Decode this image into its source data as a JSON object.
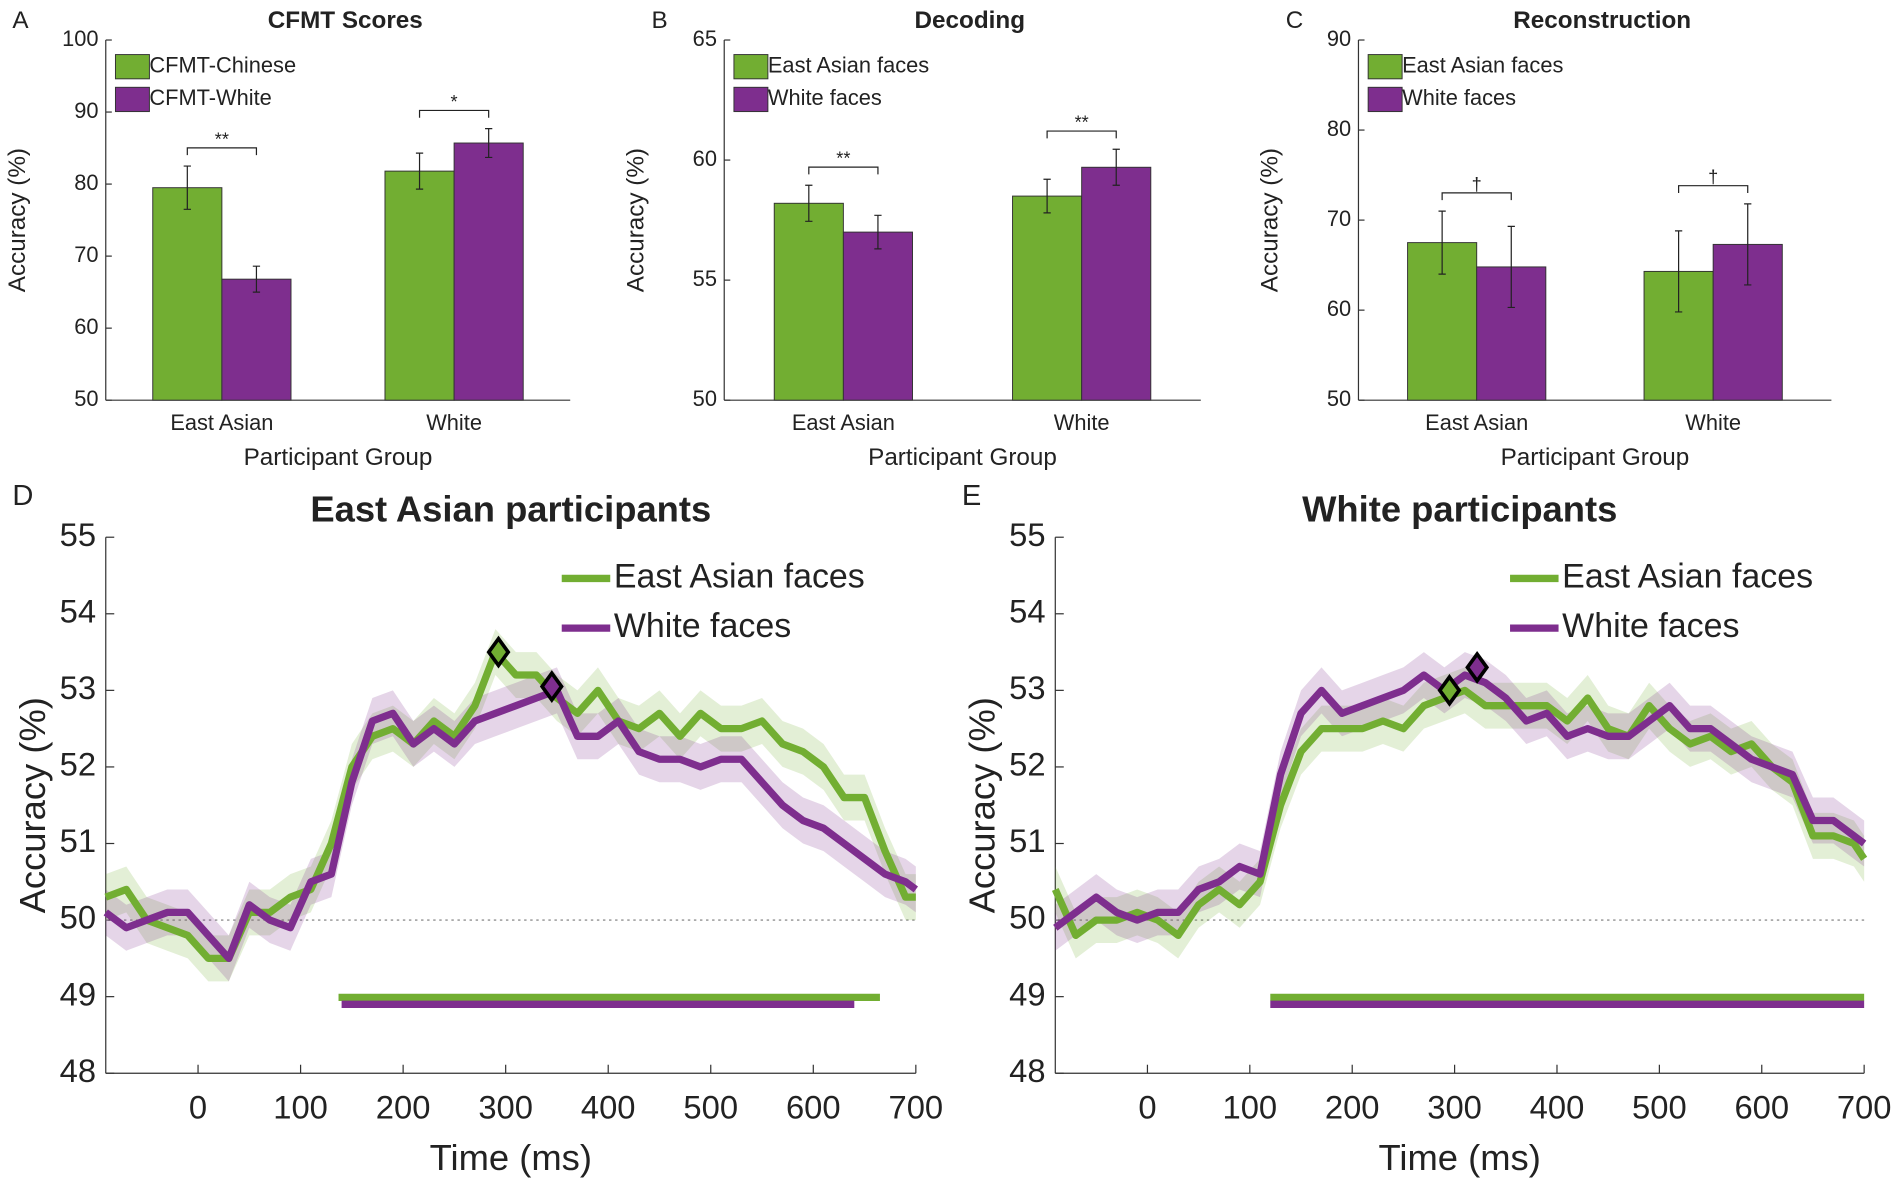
{
  "chart_data": [
    {
      "type": "bar",
      "label": "A",
      "title": "CFMT Scores",
      "xlabel": "Participant Group",
      "ylabel": "Accuracy (%)",
      "categories": [
        "East Asian",
        "White"
      ],
      "series": [
        {
          "name": "CFMT-Chinese",
          "color": "#72ae32",
          "values": [
            79.5,
            81.8
          ],
          "errors": [
            3.0,
            2.5
          ]
        },
        {
          "name": "CFMT-White",
          "color": "#7e2e8e",
          "values": [
            66.8,
            85.7
          ],
          "errors": [
            1.8,
            2.0
          ]
        }
      ],
      "annotations": [
        "**",
        "*"
      ],
      "ylim": [
        50,
        100
      ],
      "yticks": [
        50,
        60,
        70,
        80,
        90,
        100
      ]
    },
    {
      "type": "bar",
      "label": "B",
      "title": "Decoding",
      "xlabel": "Participant Group",
      "ylabel": "Accuracy (%)",
      "categories": [
        "East Asian",
        "White"
      ],
      "series": [
        {
          "name": "East Asian faces",
          "color": "#72ae32",
          "values": [
            58.2,
            58.5
          ],
          "errors": [
            0.75,
            0.7
          ]
        },
        {
          "name": "White faces",
          "color": "#7e2e8e",
          "values": [
            57.0,
            59.7
          ],
          "errors": [
            0.7,
            0.75
          ]
        }
      ],
      "annotations": [
        "**",
        "**"
      ],
      "ylim": [
        50,
        65
      ],
      "yticks": [
        50,
        55,
        60,
        65
      ]
    },
    {
      "type": "bar",
      "label": "C",
      "title": "Reconstruction",
      "xlabel": "Participant Group",
      "ylabel": "Accuracy (%)",
      "categories": [
        "East Asian",
        "White"
      ],
      "series": [
        {
          "name": "East Asian faces",
          "color": "#72ae32",
          "values": [
            67.5,
            64.3
          ],
          "errors": [
            3.5,
            4.5
          ]
        },
        {
          "name": "White faces",
          "color": "#7e2e8e",
          "values": [
            64.8,
            67.3
          ],
          "errors": [
            4.5,
            4.5
          ]
        }
      ],
      "annotations": [
        "†",
        "†"
      ],
      "ylim": [
        50,
        90
      ],
      "yticks": [
        50,
        60,
        70,
        80,
        90
      ]
    },
    {
      "type": "line",
      "label": "D",
      "title": "East Asian participants",
      "xlabel": "Time (ms)",
      "ylabel": "Accuracy (%)",
      "x": [
        -90,
        -70,
        -50,
        -30,
        -10,
        10,
        30,
        50,
        70,
        90,
        110,
        130,
        150,
        170,
        190,
        210,
        230,
        250,
        270,
        290,
        310,
        330,
        350,
        370,
        390,
        410,
        430,
        450,
        470,
        490,
        510,
        530,
        550,
        570,
        590,
        610,
        630,
        650,
        670,
        690,
        700
      ],
      "series": [
        {
          "name": "East Asian faces",
          "color": "#72ae32",
          "error": 0.3,
          "significance": [
            137,
            665
          ],
          "peak": [
            293,
            53.5
          ],
          "values": [
            50.3,
            50.4,
            50.0,
            49.9,
            49.8,
            49.5,
            49.5,
            50.1,
            50.1,
            50.3,
            50.4,
            51.0,
            52.0,
            52.4,
            52.5,
            52.3,
            52.6,
            52.4,
            52.8,
            53.5,
            53.2,
            53.2,
            52.9,
            52.7,
            53.0,
            52.6,
            52.5,
            52.7,
            52.4,
            52.7,
            52.5,
            52.5,
            52.6,
            52.3,
            52.2,
            52.0,
            51.6,
            51.6,
            50.9,
            50.3,
            50.3
          ]
        },
        {
          "name": "White faces",
          "color": "#7e2e8e",
          "error": 0.3,
          "significance": [
            140,
            640
          ],
          "peak": [
            345,
            53.05
          ],
          "values": [
            50.1,
            49.9,
            50.0,
            50.1,
            50.1,
            49.8,
            49.5,
            50.2,
            50.0,
            49.9,
            50.5,
            50.6,
            51.8,
            52.6,
            52.7,
            52.3,
            52.5,
            52.3,
            52.6,
            52.7,
            52.8,
            52.9,
            53.0,
            52.4,
            52.4,
            52.6,
            52.2,
            52.1,
            52.1,
            52.0,
            52.1,
            52.1,
            51.8,
            51.5,
            51.3,
            51.2,
            51.0,
            50.8,
            50.6,
            50.5,
            50.4
          ]
        }
      ],
      "chance": 50,
      "xlim": [
        -90,
        700
      ],
      "xticks": [
        0,
        100,
        200,
        300,
        400,
        500,
        600,
        700
      ],
      "ylim": [
        48,
        55
      ],
      "yticks": [
        48,
        49,
        50,
        51,
        52,
        53,
        54,
        55
      ]
    },
    {
      "type": "line",
      "label": "E",
      "title": "White participants",
      "xlabel": "Time (ms)",
      "ylabel": "Accuracy (%)",
      "x": [
        -90,
        -70,
        -50,
        -30,
        -10,
        10,
        30,
        50,
        70,
        90,
        110,
        130,
        150,
        170,
        190,
        210,
        230,
        250,
        270,
        290,
        310,
        330,
        350,
        370,
        390,
        410,
        430,
        450,
        470,
        490,
        510,
        530,
        550,
        570,
        590,
        610,
        630,
        650,
        670,
        690,
        700
      ],
      "series": [
        {
          "name": "East Asian faces",
          "color": "#72ae32",
          "error": 0.3,
          "significance": [
            120,
            700
          ],
          "peak": [
            295,
            53.0
          ],
          "values": [
            50.4,
            49.8,
            50.0,
            50.0,
            50.1,
            50.0,
            49.8,
            50.2,
            50.4,
            50.2,
            50.5,
            51.5,
            52.2,
            52.5,
            52.5,
            52.5,
            52.6,
            52.5,
            52.8,
            52.9,
            53.0,
            52.8,
            52.8,
            52.8,
            52.8,
            52.6,
            52.9,
            52.5,
            52.4,
            52.8,
            52.5,
            52.3,
            52.4,
            52.2,
            52.3,
            52.0,
            51.8,
            51.1,
            51.1,
            51.0,
            50.8
          ]
        },
        {
          "name": "White faces",
          "color": "#7e2e8e",
          "error": 0.3,
          "significance": [
            120,
            700
          ],
          "peak": [
            322,
            53.3
          ],
          "values": [
            49.9,
            50.1,
            50.3,
            50.1,
            50.0,
            50.1,
            50.1,
            50.4,
            50.5,
            50.7,
            50.6,
            51.9,
            52.7,
            53.0,
            52.7,
            52.8,
            52.9,
            53.0,
            53.2,
            53.0,
            53.2,
            53.1,
            52.9,
            52.6,
            52.7,
            52.4,
            52.5,
            52.4,
            52.4,
            52.6,
            52.8,
            52.5,
            52.5,
            52.3,
            52.1,
            52.0,
            51.9,
            51.3,
            51.3,
            51.1,
            51.0
          ]
        }
      ],
      "chance": 50,
      "xlim": [
        -90,
        700
      ],
      "xticks": [
        0,
        100,
        200,
        300,
        400,
        500,
        600,
        700
      ],
      "ylim": [
        48,
        55
      ],
      "yticks": [
        48,
        49,
        50,
        51,
        52,
        53,
        54,
        55
      ]
    }
  ]
}
